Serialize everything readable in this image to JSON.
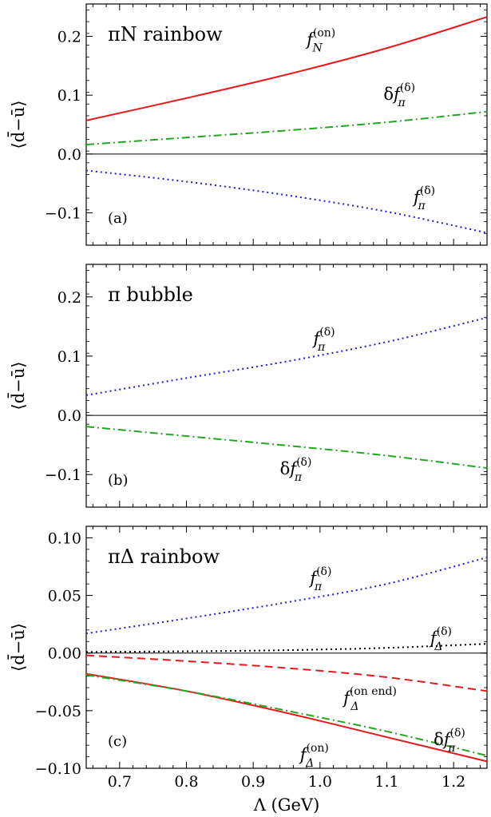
{
  "chart_data": [
    {
      "type": "line",
      "panel_tag": "(a)",
      "title": "πN rainbow",
      "ylabel": "⟨d̄−ū⟩",
      "xlim": [
        0.65,
        1.25
      ],
      "ylim": [
        -0.155,
        0.255
      ],
      "yticks": [
        -0.1,
        0.0,
        0.1,
        0.2
      ],
      "ytick_labels": [
        "−0.1",
        "0.0",
        "0.1",
        "0.2"
      ],
      "series": [
        {
          "name": "f_N^(on)",
          "label_base": "f",
          "label_sub": "N",
          "label_sup": "(on)",
          "label_prefix": "",
          "color": "#e8191b",
          "dash": "solid",
          "x": [
            0.65,
            0.8,
            0.95,
            1.1,
            1.25
          ],
          "y": [
            0.057,
            0.095,
            0.135,
            0.18,
            0.233
          ],
          "label_x": 0.98,
          "label_y": 0.185
        },
        {
          "name": "δf_π^(δ)",
          "label_base": "f",
          "label_sub": "π",
          "label_sup": "(δ)",
          "label_prefix": "δ",
          "color": "#1fa81f",
          "dash": "dashdot",
          "x": [
            0.65,
            0.8,
            0.95,
            1.1,
            1.25
          ],
          "y": [
            0.016,
            0.028,
            0.04,
            0.054,
            0.072
          ],
          "label_x": 1.095,
          "label_y": 0.092
        },
        {
          "name": "f_π^(δ)",
          "label_base": "f",
          "label_sub": "π",
          "label_sup": "(δ)",
          "label_prefix": "",
          "color": "#1919e8",
          "dash": "dotted",
          "x": [
            0.65,
            0.8,
            0.95,
            1.1,
            1.25
          ],
          "y": [
            -0.028,
            -0.047,
            -0.07,
            -0.098,
            -0.134
          ],
          "label_x": 1.14,
          "label_y": -0.083
        }
      ],
      "zero_line": true
    },
    {
      "type": "line",
      "panel_tag": "(b)",
      "title": "π  bubble",
      "ylabel": "⟨d̄−ū⟩",
      "xlim": [
        0.65,
        1.25
      ],
      "ylim": [
        -0.155,
        0.255
      ],
      "yticks": [
        -0.1,
        0.0,
        0.1,
        0.2
      ],
      "ytick_labels": [
        "−0.1",
        "0.0",
        "0.1",
        "0.2"
      ],
      "series": [
        {
          "name": "f_π^(δ)",
          "label_base": "f",
          "label_sub": "π",
          "label_sup": "(δ)",
          "label_prefix": "",
          "color": "#1919e8",
          "dash": "dotted",
          "x": [
            0.65,
            0.8,
            0.95,
            1.1,
            1.25
          ],
          "y": [
            0.034,
            0.063,
            0.091,
            0.124,
            0.165
          ],
          "label_x": 0.99,
          "label_y": 0.12
        },
        {
          "name": "δf_π^(δ)",
          "label_base": "f",
          "label_sub": "π",
          "label_sup": "(δ)",
          "label_prefix": "δ",
          "color": "#1fa81f",
          "dash": "dashdot",
          "x": [
            0.65,
            0.8,
            0.95,
            1.1,
            1.25
          ],
          "y": [
            -0.019,
            -0.035,
            -0.051,
            -0.068,
            -0.089
          ],
          "label_x": 0.94,
          "label_y": -0.1
        }
      ],
      "zero_line": true
    },
    {
      "type": "line",
      "panel_tag": "(c)",
      "title": "πΔ rainbow",
      "ylabel": "⟨d̄−ū⟩",
      "xlabel": "Λ  (GeV)",
      "xlim": [
        0.65,
        1.25
      ],
      "ylim": [
        -0.1,
        0.11
      ],
      "yticks": [
        -0.1,
        -0.05,
        0.0,
        0.05,
        0.1
      ],
      "ytick_labels": [
        "−0.10",
        "−0.05",
        "0.00",
        "0.05",
        "0.10"
      ],
      "xticks": [
        0.7,
        0.8,
        0.9,
        1.0,
        1.1,
        1.2
      ],
      "xtick_labels": [
        "0.7",
        "0.8",
        "0.9",
        "1.0",
        "1.1",
        "1.2"
      ],
      "series": [
        {
          "name": "f_π^(δ)",
          "label_base": "f",
          "label_sub": "π",
          "label_sup": "(δ)",
          "label_prefix": "",
          "color": "#1919e8",
          "dash": "dotted",
          "x": [
            0.65,
            0.8,
            0.95,
            1.1,
            1.25
          ],
          "y": [
            0.017,
            0.03,
            0.044,
            0.06,
            0.083
          ],
          "label_x": 0.985,
          "label_y": 0.06
        },
        {
          "name": "f_Δ^(δ)",
          "label_base": "f",
          "label_sub": "Δ",
          "label_sup": "(δ)",
          "label_prefix": "",
          "color": "#000000",
          "dash": "dotted",
          "x": [
            0.65,
            0.8,
            0.95,
            1.1,
            1.25
          ],
          "y": [
            0.001,
            0.0015,
            0.0025,
            0.0045,
            0.008
          ],
          "label_x": 1.165,
          "label_y": 0.008
        },
        {
          "name": "f_Δ^(on end)",
          "label_base": "f",
          "label_sub": "Δ",
          "label_sup": "(on end)",
          "label_prefix": "",
          "color": "#e8191b",
          "dash": "dashed",
          "x": [
            0.65,
            0.8,
            0.95,
            1.1,
            1.25
          ],
          "y": [
            -0.002,
            -0.007,
            -0.013,
            -0.021,
            -0.033
          ],
          "label_x": 1.035,
          "label_y": -0.044
        },
        {
          "name": "f_Δ^(on)",
          "label_base": "f",
          "label_sub": "Δ",
          "label_sup": "(on)",
          "label_prefix": "",
          "color": "#e8191b",
          "dash": "solid",
          "x": [
            0.65,
            0.8,
            0.95,
            1.1,
            1.25
          ],
          "y": [
            -0.018,
            -0.033,
            -0.052,
            -0.073,
            -0.094
          ],
          "label_x": 0.97,
          "label_y": -0.093
        },
        {
          "name": "δf_π^(δ)",
          "label_base": "f",
          "label_sub": "π",
          "label_sup": "(δ)",
          "label_prefix": "δ",
          "color": "#1fa81f",
          "dash": "dashdot",
          "x": [
            0.65,
            0.8,
            0.95,
            1.1,
            1.25
          ],
          "y": [
            -0.019,
            -0.033,
            -0.05,
            -0.068,
            -0.089
          ],
          "label_x": 1.17,
          "label_y": -0.08
        }
      ],
      "zero_line": true
    }
  ]
}
